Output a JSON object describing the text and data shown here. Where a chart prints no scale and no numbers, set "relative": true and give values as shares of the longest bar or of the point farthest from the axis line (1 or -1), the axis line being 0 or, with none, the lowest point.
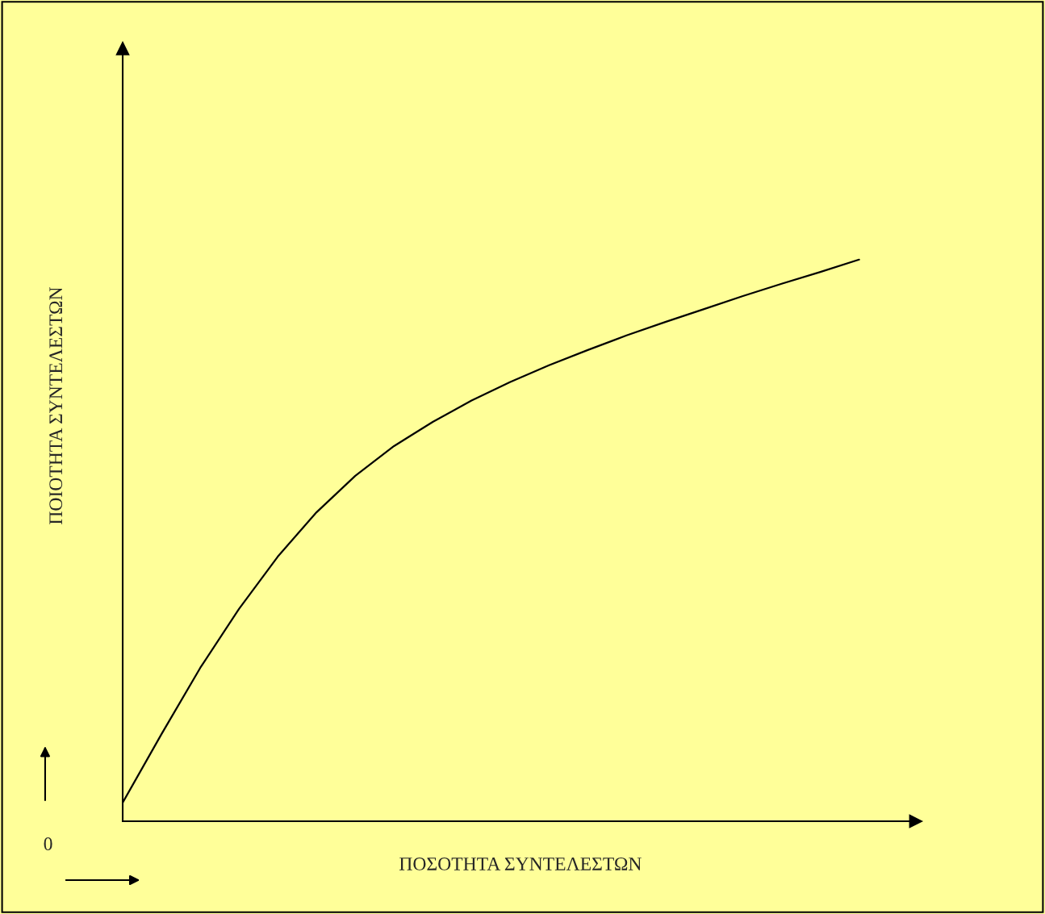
{
  "chart_data": {
    "type": "line",
    "relative": true,
    "xlabel": "ΠΟΣΟΤΗΤΑ ΣΥΝΤΕΛΕΣΤΩΝ",
    "ylabel": "ΠΟΙΟΤΗΤΑ ΣΥΝΤΕΛΕΣΤΩΝ",
    "annotations": [
      "0"
    ],
    "categories": [
      null,
      null,
      null,
      null,
      null,
      null,
      null,
      null,
      null,
      null,
      null,
      null,
      null,
      null,
      null,
      null,
      null,
      null,
      null,
      null
    ],
    "series": [
      {
        "color": "#000000",
        "values": [
          0.033,
          0.155,
          0.273,
          0.378,
          0.471,
          0.55,
          0.615,
          0.668,
          0.711,
          0.749,
          0.782,
          0.812,
          0.839,
          0.865,
          0.889,
          0.912,
          0.935,
          0.957,
          0.978,
          1
        ]
      }
    ],
    "grid": false,
    "marker": "none",
    "line_style": "solid"
  }
}
